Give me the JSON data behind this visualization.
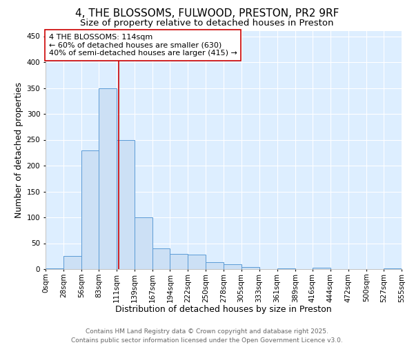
{
  "title": "4, THE BLOSSOMS, FULWOOD, PRESTON, PR2 9RF",
  "subtitle": "Size of property relative to detached houses in Preston",
  "xlabel": "Distribution of detached houses by size in Preston",
  "ylabel": "Number of detached properties",
  "bar_values": [
    2,
    25,
    230,
    350,
    250,
    100,
    40,
    30,
    28,
    14,
    10,
    4,
    0,
    2,
    0,
    3,
    0,
    0,
    0,
    2
  ],
  "bin_edges": [
    0,
    28,
    56,
    83,
    111,
    139,
    167,
    194,
    222,
    250,
    278,
    305,
    333,
    361,
    389,
    416,
    444,
    472,
    500,
    527,
    555
  ],
  "tick_labels": [
    "0sqm",
    "28sqm",
    "56sqm",
    "83sqm",
    "111sqm",
    "139sqm",
    "167sqm",
    "194sqm",
    "222sqm",
    "250sqm",
    "278sqm",
    "305sqm",
    "333sqm",
    "361sqm",
    "389sqm",
    "416sqm",
    "444sqm",
    "472sqm",
    "500sqm",
    "527sqm",
    "555sqm"
  ],
  "bar_color": "#cce0f5",
  "bar_edge_color": "#5b9bd5",
  "vline_x": 114,
  "vline_color": "#cc0000",
  "annotation_line1": "4 THE BLOSSOMS: 114sqm",
  "annotation_line2": "← 60% of detached houses are smaller (630)",
  "annotation_line3": "40% of semi-detached houses are larger (415) →",
  "annotation_box_color": "#ffffff",
  "annotation_box_edge": "#cc0000",
  "ylim": [
    0,
    460
  ],
  "yticks": [
    0,
    50,
    100,
    150,
    200,
    250,
    300,
    350,
    400,
    450
  ],
  "background_color": "#ddeeff",
  "grid_color": "#ffffff",
  "footer_line1": "Contains HM Land Registry data © Crown copyright and database right 2025.",
  "footer_line2": "Contains public sector information licensed under the Open Government Licence v3.0.",
  "title_fontsize": 11,
  "subtitle_fontsize": 9.5,
  "xlabel_fontsize": 9,
  "ylabel_fontsize": 9,
  "tick_fontsize": 7.5,
  "annotation_fontsize": 8,
  "footer_fontsize": 6.5
}
